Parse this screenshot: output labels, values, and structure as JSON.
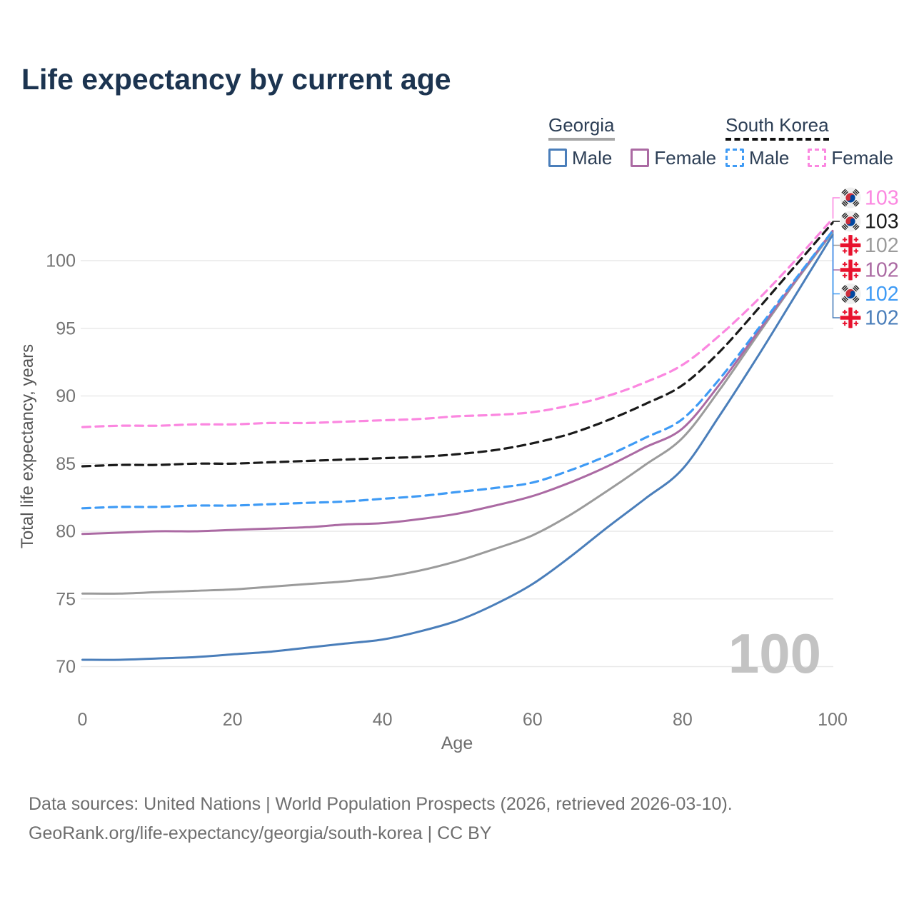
{
  "title": "Life expectancy by current age",
  "legend": {
    "groups": [
      {
        "label": "Georgia",
        "line_style": "solid",
        "underline_color": "#a6a6a6",
        "items": [
          {
            "label": "Male",
            "color": "#4a7eba"
          },
          {
            "label": "Female",
            "color": "#ab6aa3"
          }
        ]
      },
      {
        "label": "South Korea",
        "line_style": "dashed",
        "underline_color": "#111111",
        "items": [
          {
            "label": "Male",
            "color": "#3f9bf5"
          },
          {
            "label": "Female",
            "color": "#fb87e0"
          }
        ]
      }
    ]
  },
  "watermark": "100",
  "footer": {
    "line1": "Data sources: United Nations | World Population Prospects (2026, retrieved 2026-03-10).",
    "line2": "GeoRank.org/life-expectancy/georgia/south-korea | CC BY"
  },
  "chart_data": {
    "type": "line",
    "title": "Life expectancy by current age",
    "xlabel": "Age",
    "ylabel": "Total life expectancy, years",
    "xlim": [
      0,
      100
    ],
    "ylim": [
      68.5,
      104.5
    ],
    "x_ticks": [
      0,
      20,
      40,
      60,
      80,
      100
    ],
    "y_ticks": [
      70,
      75,
      80,
      85,
      90,
      95,
      100
    ],
    "grid": "horizontal",
    "legend_position": "top-right",
    "x": [
      0,
      5,
      10,
      15,
      20,
      25,
      30,
      35,
      40,
      45,
      50,
      55,
      60,
      65,
      70,
      75,
      80,
      85,
      90,
      95,
      100
    ],
    "series": [
      {
        "name": "Georgia Male",
        "id": "georgia-male",
        "country": "georgia",
        "sex": "male",
        "color": "#4a7eba",
        "dash": "solid",
        "values": [
          70.5,
          70.5,
          70.6,
          70.7,
          70.9,
          71.1,
          71.4,
          71.7,
          72.0,
          72.6,
          73.4,
          74.6,
          76.1,
          78.1,
          80.3,
          82.4,
          84.6,
          88.6,
          92.9,
          97.4,
          101.9
        ],
        "end_label": "102",
        "end_label_slot": 5
      },
      {
        "name": "Georgia Total",
        "id": "georgia-total",
        "country": "georgia",
        "sex": "all",
        "color": "#9b9b9b",
        "dash": "solid",
        "values": [
          75.4,
          75.4,
          75.5,
          75.6,
          75.7,
          75.9,
          76.1,
          76.3,
          76.6,
          77.1,
          77.8,
          78.7,
          79.7,
          81.2,
          83.0,
          84.9,
          86.9,
          90.5,
          94.5,
          98.4,
          102.1
        ],
        "end_label": "102",
        "end_label_slot": 2
      },
      {
        "name": "Georgia Female",
        "id": "georgia-female",
        "country": "georgia",
        "sex": "female",
        "color": "#ab6aa3",
        "dash": "solid",
        "values": [
          79.8,
          79.9,
          80.0,
          80.0,
          80.1,
          80.2,
          80.3,
          80.5,
          80.6,
          80.9,
          81.3,
          81.9,
          82.6,
          83.6,
          84.8,
          86.2,
          87.6,
          90.9,
          94.7,
          98.5,
          102.2
        ],
        "end_label": "102",
        "end_label_slot": 3
      },
      {
        "name": "South Korea Male",
        "id": "south-korea-male",
        "country": "south-korea",
        "sex": "male",
        "color": "#3f9bf5",
        "dash": "dashed",
        "values": [
          81.7,
          81.8,
          81.8,
          81.9,
          81.9,
          82.0,
          82.1,
          82.2,
          82.4,
          82.6,
          82.9,
          83.2,
          83.6,
          84.5,
          85.6,
          86.9,
          88.3,
          91.3,
          94.9,
          98.6,
          102.2
        ],
        "end_label": "102",
        "end_label_slot": 4
      },
      {
        "name": "South Korea Total",
        "id": "south-korea-total",
        "country": "south-korea",
        "sex": "all",
        "color": "#1a1a1a",
        "dash": "dashed",
        "values": [
          84.8,
          84.9,
          84.9,
          85.0,
          85.0,
          85.1,
          85.2,
          85.3,
          85.4,
          85.5,
          85.7,
          86.0,
          86.5,
          87.2,
          88.2,
          89.4,
          90.8,
          93.3,
          96.4,
          99.6,
          102.8
        ],
        "end_label": "103",
        "end_label_slot": 1
      },
      {
        "name": "South Korea Female",
        "id": "south-korea-female",
        "country": "south-korea",
        "sex": "female",
        "color": "#fb87e0",
        "dash": "dashed",
        "values": [
          87.7,
          87.8,
          87.8,
          87.9,
          87.9,
          88.0,
          88.0,
          88.1,
          88.2,
          88.3,
          88.5,
          88.6,
          88.8,
          89.3,
          90.0,
          91.0,
          92.3,
          94.5,
          97.1,
          100.0,
          103.1
        ],
        "end_label": "103",
        "end_label_slot": 0
      }
    ],
    "colors": {
      "grid": "#e9e9e9",
      "tick_text": "#757575",
      "axis_title": "#6e6e6e",
      "y_axis_title": "#555555",
      "watermark": "#c3c3c3",
      "title_text": "#1c3450",
      "flag_red": "#e8112d",
      "taegeuk_red": "#cd2e3a",
      "taegeuk_blue": "#0047a0"
    }
  }
}
